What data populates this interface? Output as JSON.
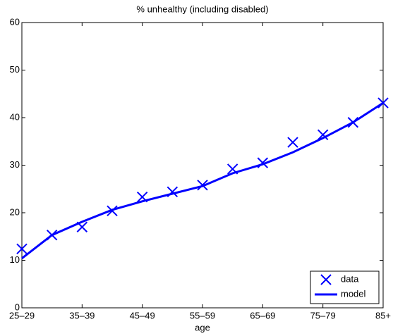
{
  "chart_data": {
    "type": "line",
    "title": "% unhealthy (including disabled)",
    "x_label": "age",
    "categories": [
      "25–29",
      null,
      "35–39",
      null,
      "45–49",
      null,
      "55–59",
      null,
      "65–69",
      null,
      "75–79",
      null,
      "85+"
    ],
    "series": [
      {
        "name": "data",
        "color": "#0000ff",
        "mode": "markers",
        "values": [
          12.4,
          15.3,
          17.0,
          20.4,
          23.3,
          24.4,
          25.8,
          29.2,
          30.5,
          34.8,
          36.4,
          39.0,
          43.1
        ]
      },
      {
        "name": "model",
        "color": "#0000ff",
        "mode": "lines",
        "values": [
          10.4,
          15.3,
          18.1,
          20.6,
          22.4,
          24.0,
          25.6,
          28.3,
          30.2,
          32.7,
          35.7,
          39.0,
          43.1
        ]
      }
    ],
    "ylim": [
      0,
      60
    ],
    "yticks": [
      0,
      10,
      20,
      30,
      40,
      50,
      60
    ],
    "legend": "lower right"
  }
}
